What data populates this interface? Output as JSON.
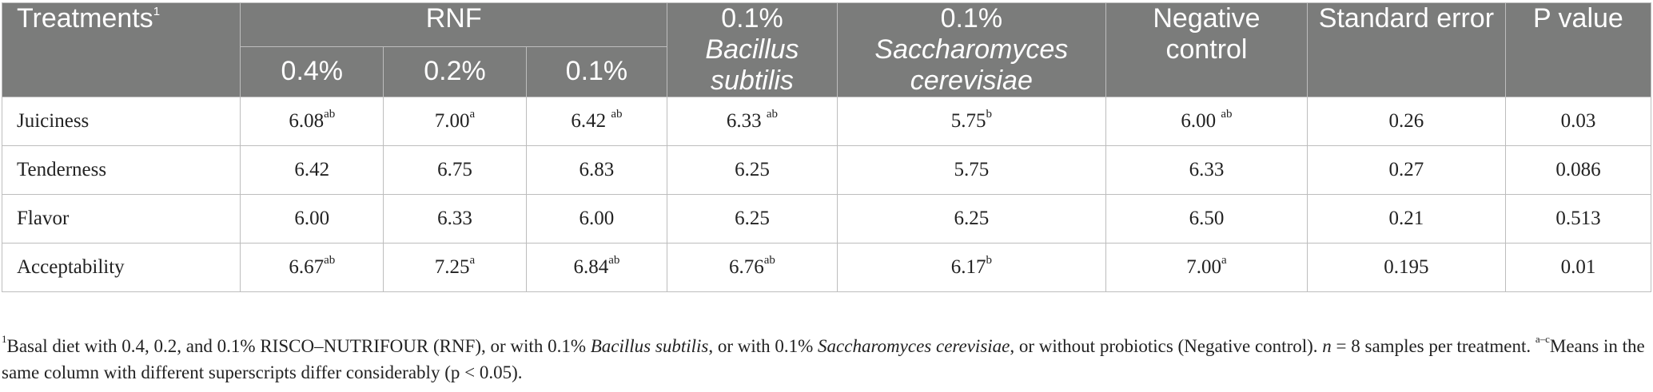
{
  "header": {
    "treatments_label": "Treatments",
    "treatments_sup": "1",
    "rnf_group": "RNF",
    "rnf_levels": [
      "0.4%",
      "0.2%",
      "0.1%"
    ],
    "bacillus_dose": "0.1%",
    "bacillus_name": "Bacillus subtilis",
    "saccharomyces_dose": "0.1%",
    "saccharomyces_name": "Saccharomyces cerevisiae",
    "negative_control": "Negative control",
    "standard_error": "Standard error",
    "p_value": "P value"
  },
  "rows": [
    {
      "label": "Juiciness",
      "cells": [
        {
          "v": "6.08",
          "s": "ab"
        },
        {
          "v": "7.00",
          "s": "a"
        },
        {
          "v": "6.42 ",
          "s": "ab"
        },
        {
          "v": "6.33 ",
          "s": "ab"
        },
        {
          "v": "5.75",
          "s": "b"
        },
        {
          "v": "6.00 ",
          "s": "ab"
        },
        {
          "v": "0.26",
          "s": ""
        },
        {
          "v": "0.03",
          "s": ""
        }
      ]
    },
    {
      "label": "Tenderness",
      "cells": [
        {
          "v": "6.42",
          "s": ""
        },
        {
          "v": "6.75",
          "s": ""
        },
        {
          "v": "6.83",
          "s": ""
        },
        {
          "v": "6.25",
          "s": ""
        },
        {
          "v": "5.75",
          "s": ""
        },
        {
          "v": "6.33",
          "s": ""
        },
        {
          "v": "0.27",
          "s": ""
        },
        {
          "v": "0.086",
          "s": ""
        }
      ]
    },
    {
      "label": "Flavor",
      "cells": [
        {
          "v": "6.00",
          "s": ""
        },
        {
          "v": "6.33",
          "s": ""
        },
        {
          "v": "6.00",
          "s": ""
        },
        {
          "v": "6.25",
          "s": ""
        },
        {
          "v": "6.25",
          "s": ""
        },
        {
          "v": "6.50",
          "s": ""
        },
        {
          "v": "0.21",
          "s": ""
        },
        {
          "v": "0.513",
          "s": ""
        }
      ]
    },
    {
      "label": "Acceptability",
      "cells": [
        {
          "v": "6.67",
          "s": "ab"
        },
        {
          "v": "7.25",
          "s": "a"
        },
        {
          "v": "6.84",
          "s": "ab"
        },
        {
          "v": "6.76",
          "s": "ab"
        },
        {
          "v": "6.17",
          "s": "b"
        },
        {
          "v": "7.00",
          "s": "a"
        },
        {
          "v": "0.195",
          "s": ""
        },
        {
          "v": "0.01",
          "s": ""
        }
      ]
    }
  ],
  "footnote": {
    "line1_sup": "1",
    "text_a": "Basal diet with 0.4, 0.2, and 0.1% RISCO–NUTRIFOUR (RNF), or with 0.1% ",
    "bacillus": "Bacillus subtilis",
    "text_b": ", or with 0.1% ",
    "saccharomyces": "Saccharomyces cerevisiae",
    "text_c": ", or without probiotics (Negative control). ",
    "n_symbol": "n",
    "text_d": " = 8 samples per treatment. ",
    "range_sup": "a–c",
    "text_e": "Means in the same column with different superscripts differ considerably (p < 0.05)."
  }
}
